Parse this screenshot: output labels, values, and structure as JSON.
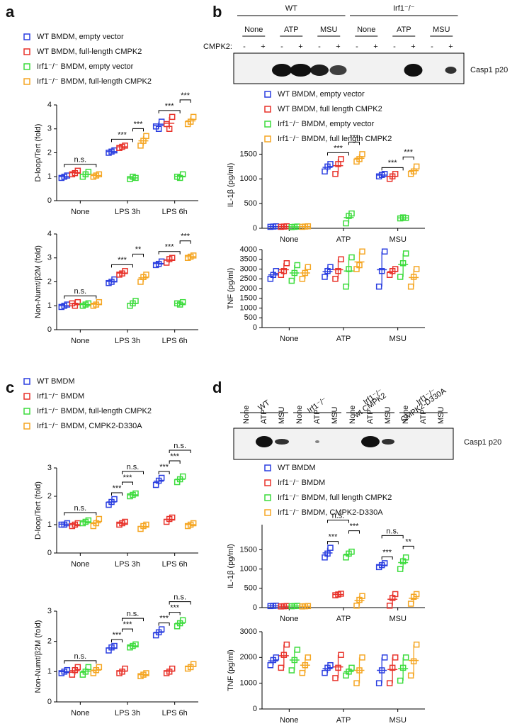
{
  "panel_labels": [
    "a",
    "b",
    "c",
    "d"
  ],
  "blots": [
    {
      "group_labels": [
        [
          "WT"
        ],
        [
          "Irf1⁻/⁻"
        ]
      ],
      "lane_labels": [
        "None",
        "ATP",
        "MSU",
        "None",
        "ATP",
        "MSU"
      ],
      "row_label": "CMPK2:",
      "row_values": [
        "-",
        "+",
        "-",
        "+",
        "-",
        "+",
        "-",
        "+",
        "-",
        "+",
        "-",
        "+"
      ],
      "band_label": "Casp1 p20"
    },
    {
      "group_labels": [
        [
          "WT"
        ],
        [
          "Irf1⁻/⁻"
        ],
        [
          "Irf1⁻/⁻",
          "wt CMPK2"
        ],
        [
          "Irf1⁻/⁻",
          "CMPK2-D330A"
        ]
      ],
      "lane_labels": [
        "None",
        "ATP",
        "MSU",
        "None",
        "ATP",
        "MSU",
        "None",
        "ATP",
        "MSU",
        "None",
        "ATP",
        "MSU"
      ],
      "band_label": "Casp1 p20"
    }
  ],
  "chart_data": [
    {
      "type": "dot",
      "y_label": "D-loop/Tert (fold)",
      "categories": [
        "None",
        "LPS 3h",
        "LPS 6h"
      ],
      "ylim": [
        0,
        4
      ],
      "yticks": [
        0,
        1,
        2,
        3,
        4
      ],
      "series": [
        {
          "name": "WT BMDM, empty vector",
          "color": "#2b3fe0",
          "values": [
            [
              0.95,
              1.05,
              1.0
            ],
            [
              2.0,
              2.1,
              2.05
            ],
            [
              3.1,
              3.3,
              3.0
            ]
          ]
        },
        {
          "name": "WT BMDM, full-length CMPK2",
          "color": "#e8322a",
          "values": [
            [
              1.1,
              1.25,
              1.15
            ],
            [
              2.2,
              2.3,
              2.25
            ],
            [
              3.2,
              3.5,
              3.0
            ]
          ]
        },
        {
          "name": "Irf1⁻/⁻ BMDM, empty vector",
          "color": "#3ddc3d",
          "values": [
            [
              1.0,
              1.2,
              1.1
            ],
            [
              0.9,
              0.95,
              1.0
            ],
            [
              1.0,
              1.1,
              0.95
            ]
          ]
        },
        {
          "name": "Irf1⁻/⁻ BMDM, full-length CMPK2",
          "color": "#f5a623",
          "values": [
            [
              1.0,
              1.1,
              1.05
            ],
            [
              2.3,
              2.7,
              2.5
            ],
            [
              3.2,
              3.5,
              3.3
            ]
          ]
        }
      ],
      "annotations": [
        "n.s.",
        "***",
        "***",
        "***",
        "***"
      ]
    },
    {
      "type": "dot",
      "y_label": "Non-Numt/β2M (fold)",
      "categories": [
        "None",
        "LPS 3h",
        "LPS 6h"
      ],
      "ylim": [
        0,
        4
      ],
      "yticks": [
        0,
        1,
        2,
        3,
        4
      ],
      "series": [
        {
          "color": "#2b3fe0",
          "values": [
            [
              0.95,
              1.05,
              1.0
            ],
            [
              1.95,
              2.1,
              2.0
            ],
            [
              2.7,
              2.85,
              2.75
            ]
          ]
        },
        {
          "color": "#e8322a",
          "values": [
            [
              1.1,
              1.15,
              1.0
            ],
            [
              2.3,
              2.45,
              2.35
            ],
            [
              2.8,
              3.0,
              2.95
            ]
          ]
        },
        {
          "color": "#3ddc3d",
          "values": [
            [
              1.0,
              1.1,
              1.05
            ],
            [
              1.0,
              1.2,
              1.1
            ],
            [
              1.1,
              1.15,
              1.05
            ]
          ]
        },
        {
          "color": "#f5a623",
          "values": [
            [
              1.0,
              1.15,
              1.05
            ],
            [
              2.0,
              2.3,
              2.2
            ],
            [
              3.0,
              3.1,
              3.05
            ]
          ]
        }
      ],
      "annotations": [
        "n.s.",
        "***",
        "**",
        "***",
        "***"
      ]
    },
    {
      "type": "dot",
      "y_label": "IL-1β (pg/ml)",
      "categories": [
        "None",
        "ATP",
        "MSU"
      ],
      "ylim": [
        0,
        1750
      ],
      "yticks": [
        0,
        500,
        1000,
        1500
      ],
      "series": [
        {
          "name": "WT BMDM, empty vector",
          "color": "#2b3fe0",
          "values": [
            [
              30,
              40,
              35
            ],
            [
              1150,
              1300,
              1250
            ],
            [
              1050,
              1100,
              1080
            ]
          ]
        },
        {
          "name": "WT BMDM, full length CMPK2",
          "color": "#e8322a",
          "values": [
            [
              30,
              40,
              35
            ],
            [
              1100,
              1400,
              1300
            ],
            [
              1000,
              1100,
              1050
            ]
          ]
        },
        {
          "name": "Irf1⁻/⁻ BMDM, empty vector",
          "color": "#3ddc3d",
          "values": [
            [
              25,
              35,
              30
            ],
            [
              100,
              300,
              250
            ],
            [
              200,
              210,
              220
            ]
          ]
        },
        {
          "name": "Irf1⁻/⁻ BMDM, full length CMPK2",
          "color": "#f5a623",
          "values": [
            [
              30,
              40,
              35
            ],
            [
              1350,
              1500,
              1400
            ],
            [
              1100,
              1250,
              1150
            ]
          ]
        }
      ],
      "annotations": [
        "***",
        "***",
        "***",
        "***"
      ]
    },
    {
      "type": "dot",
      "y_label": "TNF (pg/ml)",
      "categories": [
        "None",
        "ATP",
        "MSU"
      ],
      "ylim": [
        0,
        4000
      ],
      "yticks": [
        0,
        500,
        1000,
        1500,
        2000,
        2500,
        3000,
        3500,
        4000
      ],
      "series": [
        {
          "color": "#2b3fe0",
          "values": [
            [
              2500,
              2900,
              2700
            ],
            [
              2600,
              3100,
              2900
            ],
            [
              2100,
              3900,
              2900
            ]
          ]
        },
        {
          "color": "#e8322a",
          "values": [
            [
              2700,
              3300,
              2900
            ],
            [
              2500,
              3500,
              2900
            ],
            [
              2700,
              3000,
              2900
            ]
          ]
        },
        {
          "color": "#3ddc3d",
          "values": [
            [
              2400,
              3200,
              2800
            ],
            [
              2100,
              3600,
              3000
            ],
            [
              2600,
              3800,
              3300
            ]
          ]
        },
        {
          "color": "#f5a623",
          "values": [
            [
              2500,
              3100,
              2800
            ],
            [
              3000,
              3900,
              3200
            ],
            [
              2100,
              3000,
              2600
            ]
          ]
        }
      ],
      "annotations": []
    },
    {
      "type": "dot",
      "y_label": "D-loop/Tert (fold)",
      "categories": [
        "None",
        "LPS 3h",
        "LPS 6h"
      ],
      "ylim": [
        0,
        3
      ],
      "yticks": [
        0,
        1,
        2,
        3
      ],
      "series": [
        {
          "name": "WT BMDM",
          "color": "#2b3fe0",
          "values": [
            [
              1.0,
              1.05,
              1.0
            ],
            [
              1.7,
              1.9,
              1.8
            ],
            [
              2.4,
              2.65,
              2.55
            ]
          ]
        },
        {
          "name": "Irf1⁻/⁻ BMDM",
          "color": "#e8322a",
          "values": [
            [
              0.95,
              1.05,
              1.0
            ],
            [
              1.0,
              1.1,
              1.05
            ],
            [
              1.1,
              1.25,
              1.2
            ]
          ]
        },
        {
          "name": "Irf1⁻/⁻ BMDM, full-length CMPK2",
          "color": "#3ddc3d",
          "values": [
            [
              1.05,
              1.15,
              1.1
            ],
            [
              2.0,
              2.1,
              2.05
            ],
            [
              2.5,
              2.7,
              2.6
            ]
          ]
        },
        {
          "name": "Irf1⁻/⁻ BMDM, CMPK2-D330A",
          "color": "#f5a623",
          "values": [
            [
              0.95,
              1.2,
              1.05
            ],
            [
              0.85,
              1.0,
              0.95
            ],
            [
              0.95,
              1.05,
              1.0
            ]
          ]
        }
      ],
      "annotations": [
        "n.s.",
        "***",
        "***",
        "n.s.",
        "***",
        "***",
        "n.s."
      ]
    },
    {
      "type": "dot",
      "y_label": "Non-Numt/β2M (fold)",
      "categories": [
        "None",
        "LPS 3h",
        "LPS 6h"
      ],
      "ylim": [
        0,
        3
      ],
      "yticks": [
        0,
        1,
        2,
        3
      ],
      "series": [
        {
          "color": "#2b3fe0",
          "values": [
            [
              0.95,
              1.05,
              1.0
            ],
            [
              1.7,
              1.85,
              1.8
            ],
            [
              2.2,
              2.4,
              2.3
            ]
          ]
        },
        {
          "color": "#e8322a",
          "values": [
            [
              0.9,
              1.15,
              1.05
            ],
            [
              0.95,
              1.1,
              1.0
            ],
            [
              0.95,
              1.1,
              1.0
            ]
          ]
        },
        {
          "color": "#3ddc3d",
          "values": [
            [
              0.9,
              1.15,
              1.0
            ],
            [
              1.8,
              1.9,
              1.85
            ],
            [
              2.5,
              2.7,
              2.6
            ]
          ]
        },
        {
          "color": "#f5a623",
          "values": [
            [
              0.95,
              1.15,
              1.05
            ],
            [
              0.85,
              0.95,
              0.9
            ],
            [
              1.1,
              1.25,
              1.15
            ]
          ]
        }
      ],
      "annotations": [
        "n.s.",
        "***",
        "***",
        "n.s.",
        "***",
        "***",
        "n.s."
      ]
    },
    {
      "type": "dot",
      "y_label": "IL-1β (pg/ml)",
      "categories": [
        "None",
        "ATP",
        "MSU"
      ],
      "ylim": [
        0,
        2150
      ],
      "yticks": [
        0,
        500,
        1000,
        1500
      ],
      "series": [
        {
          "name": "WT BMDM",
          "color": "#2b3fe0",
          "values": [
            [
              40,
              50,
              45
            ],
            [
              1300,
              1550,
              1400
            ],
            [
              1050,
              1150,
              1100
            ]
          ]
        },
        {
          "name": "Irf1⁻/⁻ BMDM",
          "color": "#e8322a",
          "values": [
            [
              30,
              40,
              35
            ],
            [
              320,
              360,
              340
            ],
            [
              50,
              350,
              250
            ]
          ]
        },
        {
          "name": "Irf1⁻/⁻ BMDM, full length CMPK2",
          "color": "#3ddc3d",
          "values": [
            [
              35,
              45,
              40
            ],
            [
              1300,
              1450,
              1400
            ],
            [
              1000,
              1300,
              1200
            ]
          ]
        },
        {
          "name": "Irf1⁻/⁻ BMDM, CMPK2-D330A",
          "color": "#f5a623",
          "values": [
            [
              30,
              40,
              35
            ],
            [
              50,
              300,
              200
            ],
            [
              100,
              350,
              280
            ]
          ]
        }
      ],
      "annotations": [
        "***",
        "***",
        "n.s.",
        "***",
        "**",
        "n.s."
      ]
    },
    {
      "type": "dot",
      "y_label": "TNF (pg/ml)",
      "categories": [
        "None",
        "ATP",
        "MSU"
      ],
      "ylim": [
        0,
        3000
      ],
      "yticks": [
        0,
        1000,
        2000,
        3000
      ],
      "series": [
        {
          "color": "#2b3fe0",
          "values": [
            [
              1700,
              2000,
              1900
            ],
            [
              1400,
              1700,
              1600
            ],
            [
              1000,
              2000,
              1500
            ]
          ]
        },
        {
          "color": "#e8322a",
          "values": [
            [
              1600,
              2500,
              2100
            ],
            [
              1200,
              2100,
              1600
            ],
            [
              1000,
              2000,
              1600
            ]
          ]
        },
        {
          "color": "#3ddc3d",
          "values": [
            [
              1500,
              2300,
              1900
            ],
            [
              1300,
              1600,
              1450
            ],
            [
              1100,
              2000,
              1600
            ]
          ]
        },
        {
          "color": "#f5a623",
          "values": [
            [
              1400,
              2000,
              1700
            ],
            [
              1000,
              2000,
              1500
            ],
            [
              1300,
              2500,
              1850
            ]
          ]
        }
      ],
      "annotations": []
    }
  ]
}
